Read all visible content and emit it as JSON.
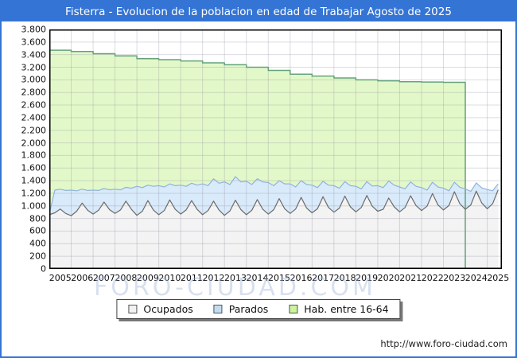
{
  "window": {
    "title": "Fisterra - Evolucion de la poblacion en edad de Trabajar Agosto de 2025",
    "titlebar_color": "#3474d4",
    "frame_border_color": "#3474d4"
  },
  "watermark": "FORO-CIUDAD.COM",
  "footer": {
    "url": "http://www.foro-ciudad.com"
  },
  "legend": {
    "items": [
      {
        "label": "Ocupados",
        "swatch_color": "#f2f2f2",
        "swatch_border": "#555555"
      },
      {
        "label": "Parados",
        "swatch_color": "#c3dcf2",
        "swatch_border": "#555555"
      },
      {
        "label": "Hab. entre 16-64",
        "swatch_color": "#ccf39e",
        "swatch_border": "#555555"
      }
    ]
  },
  "chart_data": {
    "type": "area",
    "title": "Fisterra - Evolucion de la poblacion en edad de Trabajar Agosto de 2025",
    "xlabel": "",
    "ylabel": "",
    "grid": true,
    "legend_position": "bottom-center",
    "x_range": [
      2005.0,
      2025.67
    ],
    "ylim": [
      0,
      3800
    ],
    "y_tick_step": 200,
    "y_tick_labels": [
      "3.800",
      "3.600",
      "3.400",
      "3.200",
      "3.000",
      "2.800",
      "2.600",
      "2.400",
      "2.200",
      "2.000",
      "1.800",
      "1.600",
      "1.400",
      "1.200",
      "1.000",
      "800",
      "600",
      "400",
      "200",
      "0"
    ],
    "x_tick_labels": [
      "2005",
      "2006",
      "2007",
      "2008",
      "2009",
      "2010",
      "2011",
      "2012",
      "2013",
      "2014",
      "2015",
      "2016",
      "2017",
      "2018",
      "2019",
      "2020",
      "2021",
      "2022",
      "2023",
      "2024",
      "2025"
    ],
    "grid_color": "rgba(140,140,160,0.30)",
    "plot_border_color": "#000000",
    "series": [
      {
        "name": "Hab. entre 16-64",
        "draw": "step-area",
        "fill": "#e3f8c9",
        "stroke": "#64a37a",
        "stroke_width": 1.5,
        "years": [
          2005,
          2006,
          2007,
          2008,
          2009,
          2010,
          2011,
          2012,
          2013,
          2014,
          2015,
          2016,
          2017,
          2018,
          2019,
          2020,
          2021,
          2022,
          2023
        ],
        "values": [
          3470,
          3450,
          3415,
          3380,
          3335,
          3320,
          3300,
          3270,
          3240,
          3200,
          3150,
          3090,
          3060,
          3030,
          3000,
          2985,
          2970,
          2965,
          2960
        ],
        "data_ends_at": 2024.0
      },
      {
        "name": "Parados",
        "draw": "area",
        "fill": "#d9eafa",
        "stroke": "#8fb3dd",
        "stroke_width": 1.2,
        "x_start": 2005.0,
        "x_step": 0.25,
        "values": [
          870,
          1250,
          1265,
          1245,
          1250,
          1240,
          1265,
          1245,
          1250,
          1245,
          1275,
          1255,
          1265,
          1255,
          1295,
          1280,
          1310,
          1290,
          1330,
          1310,
          1320,
          1300,
          1350,
          1320,
          1330,
          1310,
          1360,
          1330,
          1350,
          1320,
          1430,
          1360,
          1380,
          1340,
          1465,
          1380,
          1390,
          1340,
          1430,
          1380,
          1370,
          1320,
          1400,
          1350,
          1350,
          1300,
          1400,
          1340,
          1330,
          1290,
          1390,
          1330,
          1320,
          1280,
          1385,
          1320,
          1310,
          1270,
          1385,
          1315,
          1320,
          1290,
          1395,
          1330,
          1300,
          1270,
          1380,
          1310,
          1290,
          1250,
          1375,
          1300,
          1280,
          1240,
          1375,
          1295,
          1270,
          1230,
          1365,
          1285,
          1260,
          1240,
          1350
        ]
      },
      {
        "name": "Ocupados",
        "draw": "area",
        "fill": "#f3f3f3",
        "stroke": "#6b6b6b",
        "stroke_width": 1.2,
        "x_start": 2005.0,
        "x_step": 0.25,
        "values": [
          860,
          890,
          950,
          880,
          845,
          915,
          1045,
          930,
          870,
          930,
          1060,
          940,
          880,
          935,
          1075,
          945,
          850,
          915,
          1085,
          935,
          860,
          925,
          1095,
          945,
          870,
          935,
          1085,
          945,
          860,
          925,
          1075,
          935,
          850,
          920,
          1090,
          940,
          860,
          930,
          1100,
          945,
          870,
          940,
          1115,
          955,
          880,
          950,
          1135,
          965,
          890,
          955,
          1145,
          975,
          900,
          965,
          1155,
          985,
          905,
          975,
          1165,
          995,
          915,
          945,
          1125,
          985,
          905,
          975,
          1160,
          1005,
          925,
          995,
          1195,
          1015,
          935,
          1005,
          1225,
          1035,
          945,
          1015,
          1235,
          1045,
          955,
          1035,
          1255
        ]
      }
    ]
  }
}
